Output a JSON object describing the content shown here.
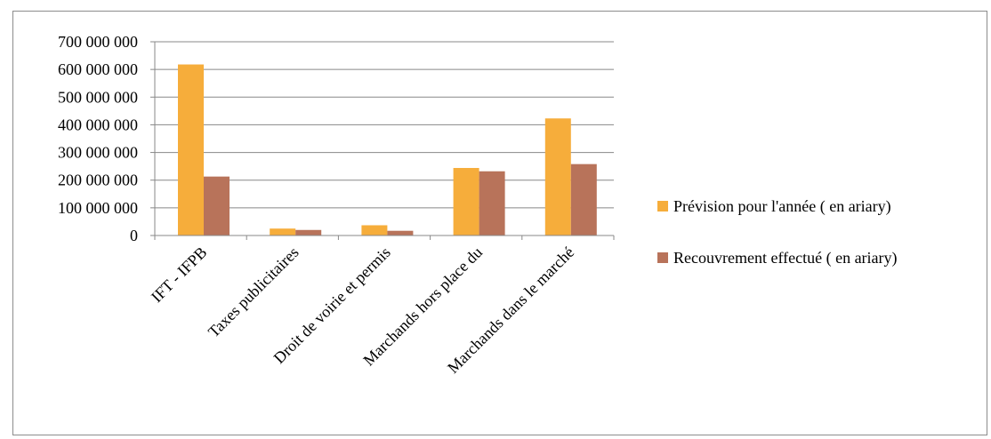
{
  "chart_data": {
    "type": "bar",
    "categories": [
      "IFT - IFPB",
      "Taxes publicitaires",
      "Droit de voirie et permis",
      "Marchands hors place du",
      "Marchands dans le marché"
    ],
    "series": [
      {
        "name": "Prévision pour l'année ( en ariary)",
        "color": "#F6AD3B",
        "values": [
          618000000,
          25000000,
          37000000,
          244000000,
          423000000
        ]
      },
      {
        "name": "Recouvrement effectué ( en ariary)",
        "color": "#B8735A",
        "values": [
          213000000,
          20000000,
          17000000,
          232000000,
          258000000
        ]
      }
    ],
    "ylim": [
      0,
      700000000
    ],
    "yticks": [
      0,
      100000000,
      200000000,
      300000000,
      400000000,
      500000000,
      600000000,
      700000000
    ],
    "ytick_labels": [
      "0",
      "100 000 000",
      "200 000 000",
      "300 000 000",
      "400 000 000",
      "500 000 000",
      "600 000 000",
      "700 000 000"
    ],
    "grid": true,
    "legend_position": "right"
  }
}
